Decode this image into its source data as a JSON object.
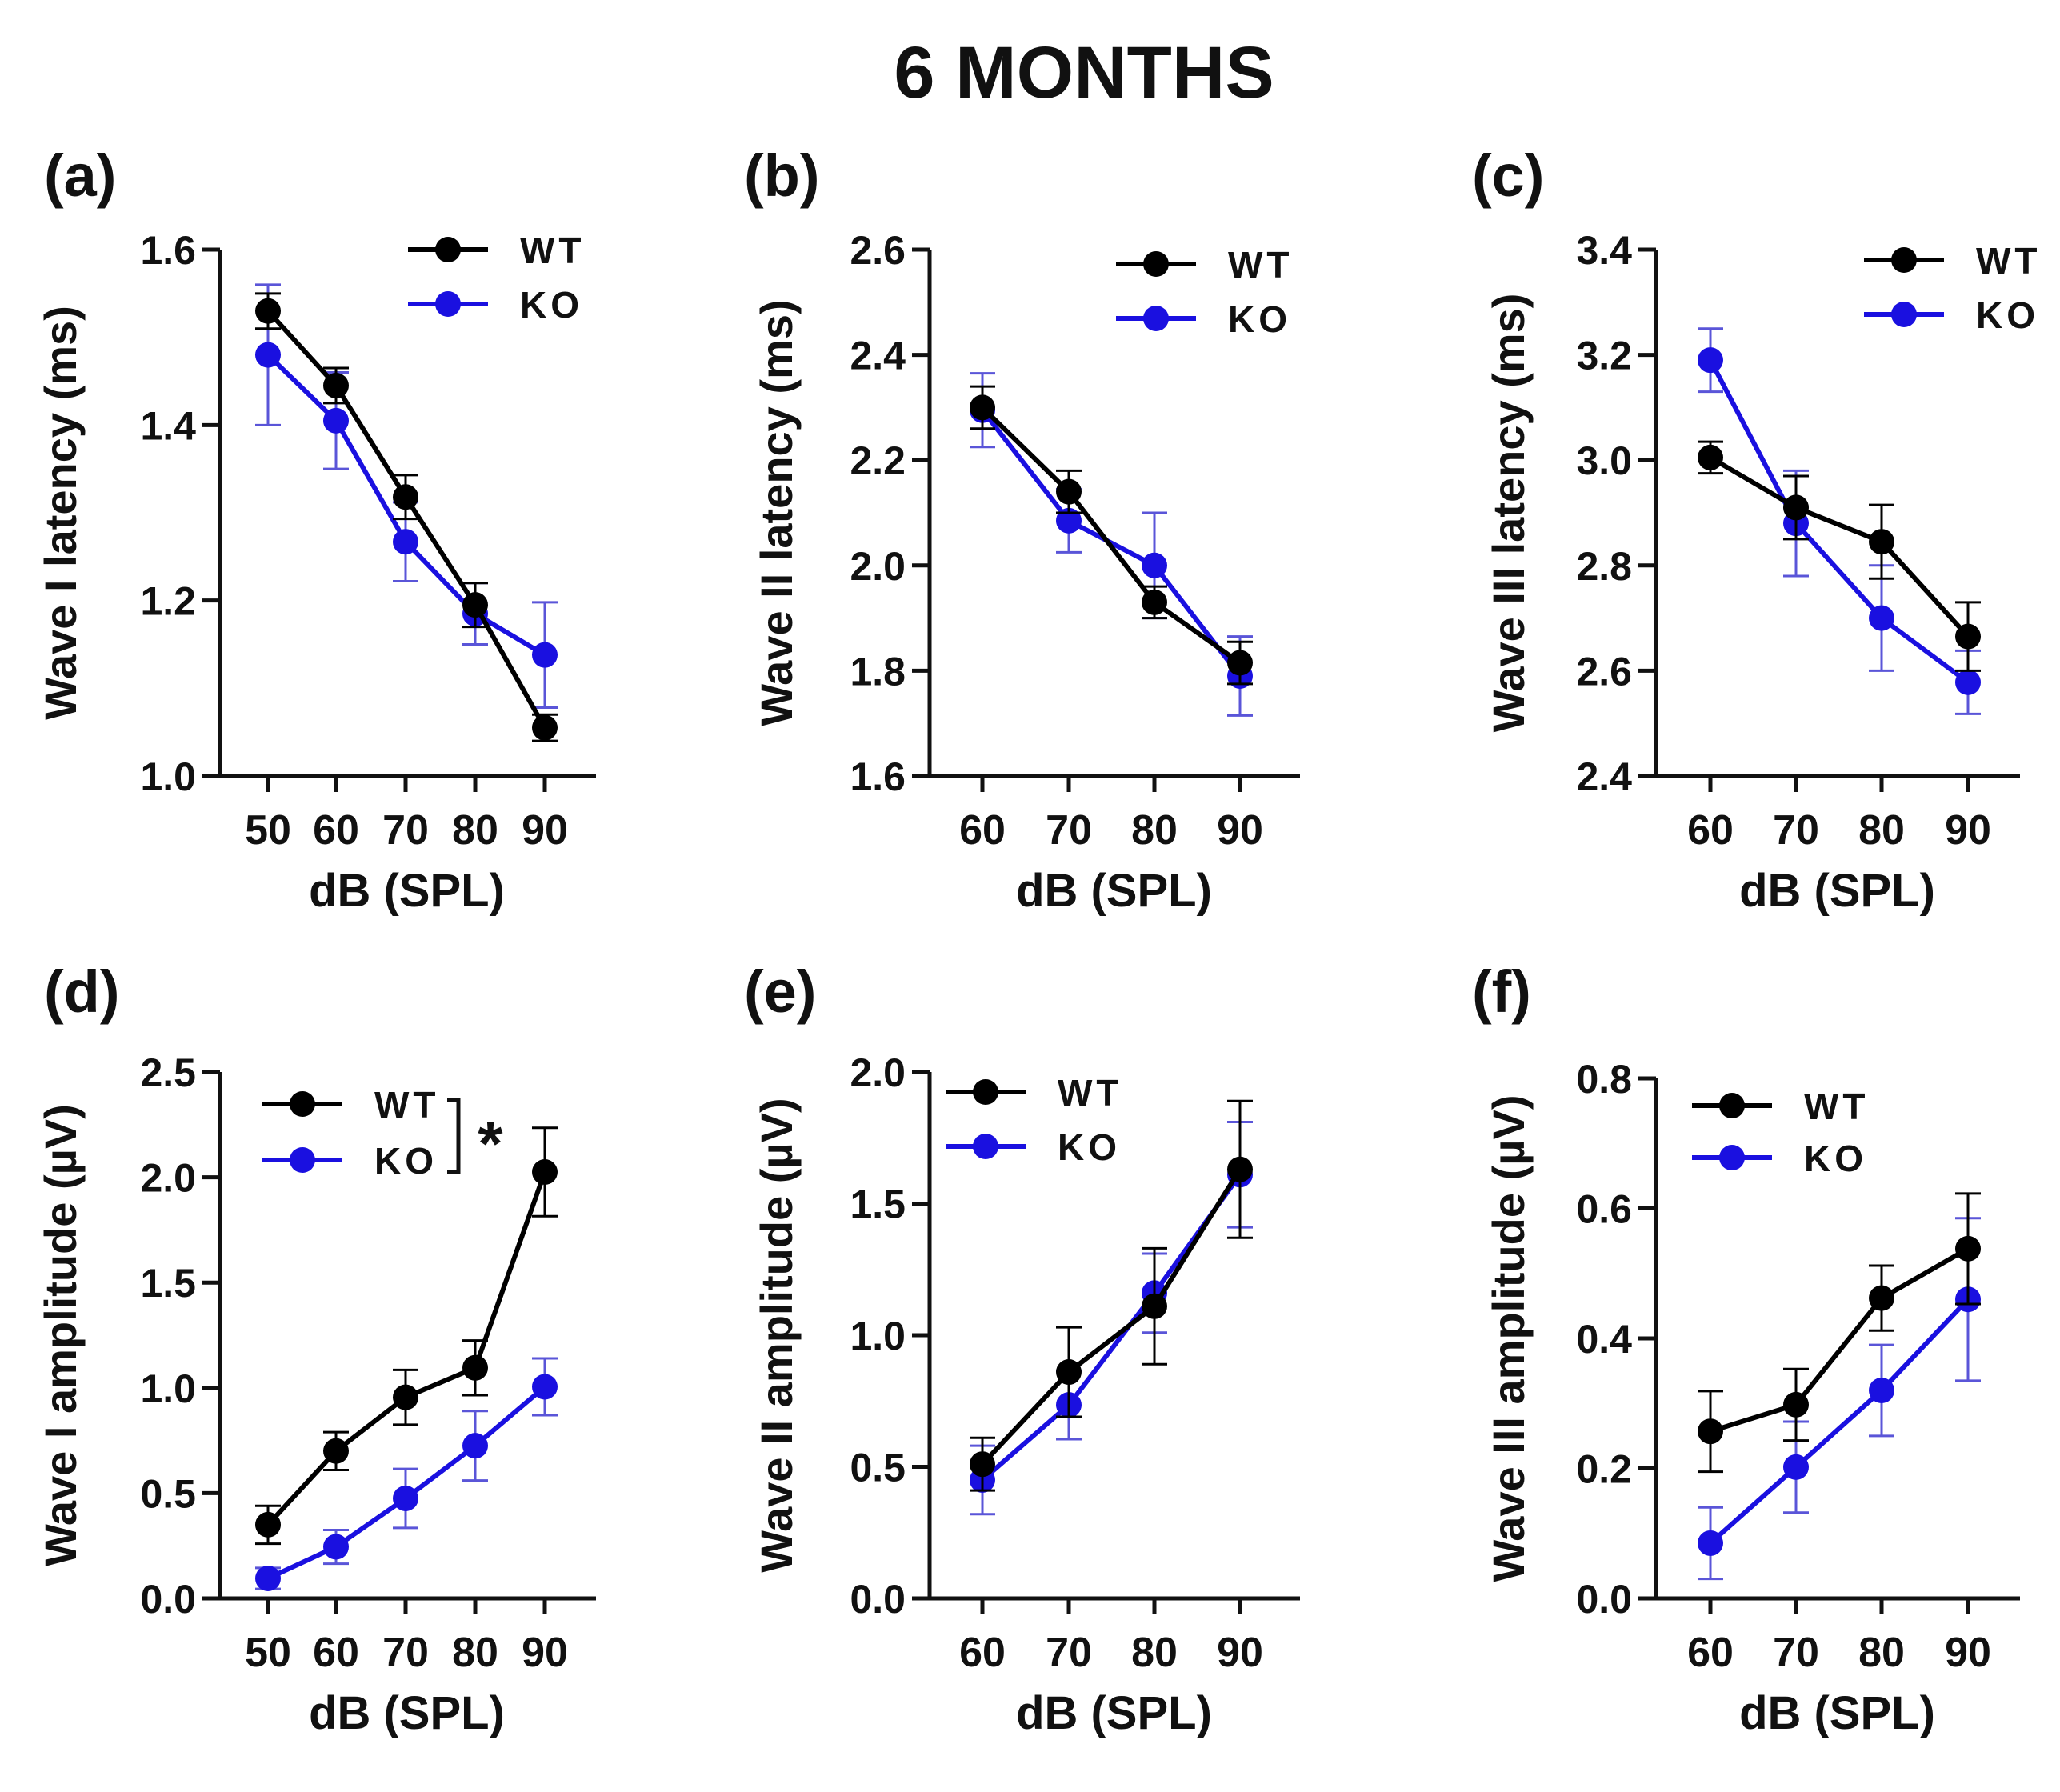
{
  "figure_title": "6 MONTHS",
  "colors": {
    "wt": "#000000",
    "ko": "#1a10e0",
    "ko_error": "#5a55d8"
  },
  "chart_data": [
    {
      "panel": "(a)",
      "type": "line",
      "x": [
        50,
        60,
        70,
        80,
        90
      ],
      "xlabel": "dB (SPL)",
      "ylabel": "Wave I latency (ms)",
      "ylim": [
        1.0,
        1.6
      ],
      "yticks": [
        1.0,
        1.2,
        1.4,
        1.6
      ],
      "ytick_labels": [
        "1.0",
        "1.2",
        "1.4",
        "1.6"
      ],
      "legend": "top-right",
      "annotation": "",
      "series": [
        {
          "name": "WT",
          "values": [
            1.53,
            1.445,
            1.318,
            1.195,
            1.055
          ],
          "err": [
            0.02,
            0.02,
            0.025,
            0.025,
            0.015
          ]
        },
        {
          "name": "KO",
          "values": [
            1.48,
            1.405,
            1.267,
            1.185,
            1.138
          ],
          "err": [
            0.08,
            0.055,
            0.045,
            0.035,
            0.06
          ]
        }
      ]
    },
    {
      "panel": "(b)",
      "type": "line",
      "x": [
        60,
        70,
        80,
        90
      ],
      "xlabel": "dB (SPL)",
      "ylabel": "Wave II latency (ms)",
      "ylim": [
        1.6,
        2.6
      ],
      "yticks": [
        1.6,
        1.8,
        2.0,
        2.2,
        2.4,
        2.6
      ],
      "ytick_labels": [
        "1.6",
        "1.8",
        "2.0",
        "2.2",
        "2.4",
        "2.6"
      ],
      "legend": "top-right",
      "annotation": "",
      "series": [
        {
          "name": "WT",
          "values": [
            2.3,
            2.14,
            1.93,
            1.815
          ],
          "err": [
            0.04,
            0.04,
            0.03,
            0.04
          ]
        },
        {
          "name": "KO",
          "values": [
            2.295,
            2.085,
            2.0,
            1.79
          ],
          "err": [
            0.07,
            0.06,
            0.1,
            0.075
          ]
        }
      ]
    },
    {
      "panel": "(c)",
      "type": "line",
      "x": [
        60,
        70,
        80,
        90
      ],
      "xlabel": "dB (SPL)",
      "ylabel": "Wave III latency (ms)",
      "ylim": [
        2.4,
        3.4
      ],
      "yticks": [
        2.4,
        2.6,
        2.8,
        3.0,
        3.2,
        3.4
      ],
      "ytick_labels": [
        "2.4",
        "2.6",
        "2.8",
        "3.0",
        "3.2",
        "3.4"
      ],
      "legend": "top-right",
      "annotation": "",
      "series": [
        {
          "name": "WT",
          "values": [
            3.005,
            2.91,
            2.845,
            2.665
          ],
          "err": [
            0.03,
            0.06,
            0.07,
            0.065
          ]
        },
        {
          "name": "KO",
          "values": [
            3.19,
            2.88,
            2.7,
            2.578
          ],
          "err": [
            0.06,
            0.1,
            0.1,
            0.06
          ]
        }
      ]
    },
    {
      "panel": "(d)",
      "type": "line",
      "x": [
        50,
        60,
        70,
        80,
        90
      ],
      "xlabel": "dB (SPL)",
      "ylabel": "Wave I amplitude (µV)",
      "ylim": [
        0.0,
        2.5
      ],
      "yticks": [
        0.0,
        0.5,
        1.0,
        1.5,
        2.0,
        2.5
      ],
      "ytick_labels": [
        "0.0",
        "0.5",
        "1.0",
        "1.5",
        "2.0",
        "2.5"
      ],
      "legend": "top-left",
      "annotation": "*",
      "series": [
        {
          "name": "WT",
          "values": [
            0.35,
            0.7,
            0.955,
            1.095,
            2.025
          ],
          "err": [
            0.09,
            0.09,
            0.13,
            0.13,
            0.21
          ]
        },
        {
          "name": "KO",
          "values": [
            0.095,
            0.245,
            0.475,
            0.725,
            1.005
          ],
          "err": [
            0.05,
            0.08,
            0.14,
            0.165,
            0.135
          ]
        }
      ]
    },
    {
      "panel": "(e)",
      "type": "line",
      "x": [
        60,
        70,
        80,
        90
      ],
      "xlabel": "dB (SPL)",
      "ylabel": "Wave II amplitude (µV)",
      "ylim": [
        0.0,
        2.0
      ],
      "yticks": [
        0.0,
        0.5,
        1.0,
        1.5,
        2.0
      ],
      "ytick_labels": [
        "0.0",
        "0.5",
        "1.0",
        "1.5",
        "2.0"
      ],
      "legend": "top-left",
      "annotation": "",
      "series": [
        {
          "name": "WT",
          "values": [
            0.51,
            0.86,
            1.11,
            1.63
          ],
          "err": [
            0.1,
            0.17,
            0.22,
            0.26
          ]
        },
        {
          "name": "KO",
          "values": [
            0.45,
            0.735,
            1.16,
            1.61
          ],
          "err": [
            0.13,
            0.13,
            0.15,
            0.2
          ]
        }
      ]
    },
    {
      "panel": "(f)",
      "type": "line",
      "x": [
        60,
        70,
        80,
        90
      ],
      "xlabel": "dB (SPL)",
      "ylabel": "Wave III amplitude (µV)",
      "ylim": [
        0.0,
        0.8
      ],
      "yticks": [
        0.0,
        0.2,
        0.4,
        0.6,
        0.8
      ],
      "ytick_labels": [
        "0.0",
        "0.2",
        "0.4",
        "0.6",
        "0.8"
      ],
      "legend": "top-left",
      "annotation": "",
      "series": [
        {
          "name": "WT",
          "values": [
            0.257,
            0.298,
            0.462,
            0.538
          ],
          "err": [
            0.062,
            0.055,
            0.05,
            0.085
          ]
        },
        {
          "name": "KO",
          "values": [
            0.085,
            0.202,
            0.32,
            0.46
          ],
          "err": [
            0.055,
            0.07,
            0.07,
            0.125
          ]
        }
      ]
    }
  ]
}
